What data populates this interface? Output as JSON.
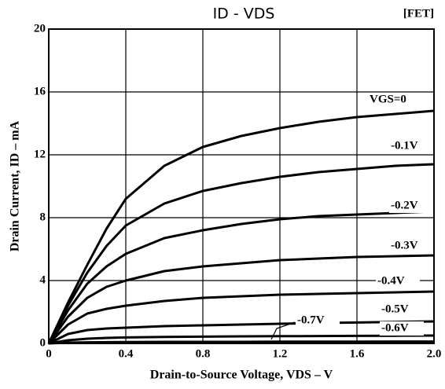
{
  "chart_data": {
    "type": "line",
    "title": "ID - VDS",
    "tag": "[FET]",
    "x_label": "Drain-to-Source Voltage, VDS – V",
    "y_label": "Drain Current, ID – mA",
    "x": [
      0,
      0.1,
      0.2,
      0.3,
      0.4,
      0.6,
      0.8,
      1.0,
      1.2,
      1.4,
      1.6,
      1.8,
      2.0
    ],
    "series": [
      {
        "name": "VGS=0",
        "color": "#000000",
        "values": [
          0,
          2.6,
          5.0,
          7.3,
          9.2,
          11.3,
          12.5,
          13.2,
          13.7,
          14.1,
          14.4,
          14.6,
          14.8
        ]
      },
      {
        "name": "-0.1V",
        "color": "#000000",
        "values": [
          0,
          2.4,
          4.5,
          6.2,
          7.5,
          8.9,
          9.7,
          10.2,
          10.6,
          10.9,
          11.1,
          11.3,
          11.4
        ]
      },
      {
        "name": "-0.2V",
        "color": "#000000",
        "values": [
          0,
          2.1,
          3.8,
          4.9,
          5.7,
          6.7,
          7.2,
          7.6,
          7.9,
          8.1,
          8.2,
          8.3,
          8.4
        ]
      },
      {
        "name": "-0.3V",
        "color": "#000000",
        "values": [
          0,
          1.7,
          2.9,
          3.6,
          4.0,
          4.6,
          4.9,
          5.1,
          5.3,
          5.4,
          5.5,
          5.55,
          5.6
        ]
      },
      {
        "name": "-0.4V",
        "color": "#000000",
        "values": [
          0,
          1.2,
          1.9,
          2.2,
          2.4,
          2.7,
          2.9,
          3.0,
          3.1,
          3.15,
          3.2,
          3.25,
          3.3
        ]
      },
      {
        "name": "-0.5V",
        "color": "#000000",
        "values": [
          0,
          0.6,
          0.85,
          0.95,
          1.0,
          1.1,
          1.15,
          1.2,
          1.25,
          1.3,
          1.33,
          1.37,
          1.4
        ]
      },
      {
        "name": "-0.6V",
        "color": "#000000",
        "values": [
          0,
          0.2,
          0.3,
          0.35,
          0.38,
          0.41,
          0.43,
          0.45,
          0.46,
          0.47,
          0.48,
          0.49,
          0.5
        ]
      },
      {
        "name": "-0.7V",
        "color": "#000000",
        "values": [
          0,
          0.05,
          0.07,
          0.08,
          0.09,
          0.1,
          0.1,
          0.1,
          0.11,
          0.11,
          0.11,
          0.12,
          0.12
        ]
      }
    ],
    "xlim": [
      0,
      2
    ],
    "ylim": [
      0,
      20
    ],
    "xticks": [
      0,
      0.4,
      0.8,
      1.2,
      1.6,
      {
        "value": 2,
        "label": "2.0"
      }
    ],
    "yticks": [
      0,
      4,
      8,
      12,
      16,
      20
    ],
    "grid": true
  }
}
